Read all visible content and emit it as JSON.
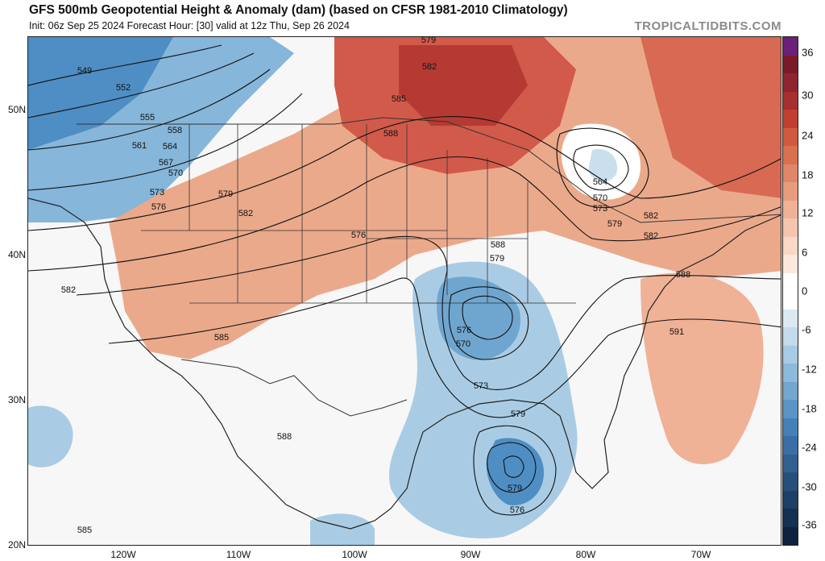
{
  "header": {
    "title": "GFS 500mb Geopotential Height & Anomaly (dam) (based on CFSR 1981-2010 Climatology)",
    "subtitle": "Init: 06z Sep 25 2024   Forecast Hour: [30]   valid at 12z Thu, Sep 26 2024",
    "source": "TROPICALTIDBITS.COM"
  },
  "map": {
    "lat_labels": [
      "50N",
      "40N",
      "30N",
      "20N"
    ],
    "lon_labels": [
      "120W",
      "110W",
      "100W",
      "90W",
      "80W",
      "70W"
    ],
    "contour_labels": [
      "549",
      "552",
      "555",
      "558",
      "561",
      "564",
      "567",
      "570",
      "573",
      "576",
      "579",
      "582",
      "585",
      "588",
      "576",
      "579",
      "582",
      "585",
      "588",
      "579",
      "576",
      "570",
      "573",
      "579",
      "579",
      "576",
      "582",
      "564",
      "570",
      "573",
      "579",
      "582",
      "588",
      "591",
      "588",
      "585",
      "582"
    ],
    "colors": {
      "land_outline": "#222222",
      "state_outline": "#333333",
      "contour": "#111111"
    }
  },
  "colorbar": {
    "labels": [
      "36",
      "30",
      "24",
      "18",
      "12",
      "6",
      "0",
      "-6",
      "-12",
      "-18",
      "-24",
      "-30",
      "-36"
    ],
    "colors": [
      "#6a1f7a",
      "#7a1a28",
      "#8e2430",
      "#a5302e",
      "#bf3f33",
      "#cf5a40",
      "#d9714f",
      "#e0866a",
      "#e89c7e",
      "#efb297",
      "#f4c6ae",
      "#f8d8c7",
      "#fbe9dd",
      "#ffffff",
      "#ffffff",
      "#dbe9f2",
      "#c3dbec",
      "#a7cbe3",
      "#8db9da",
      "#73a7d0",
      "#5b94c6",
      "#4680b9",
      "#3a6fa5",
      "#305f90",
      "#26507b",
      "#1c4066",
      "#143152",
      "#0d2240"
    ]
  }
}
